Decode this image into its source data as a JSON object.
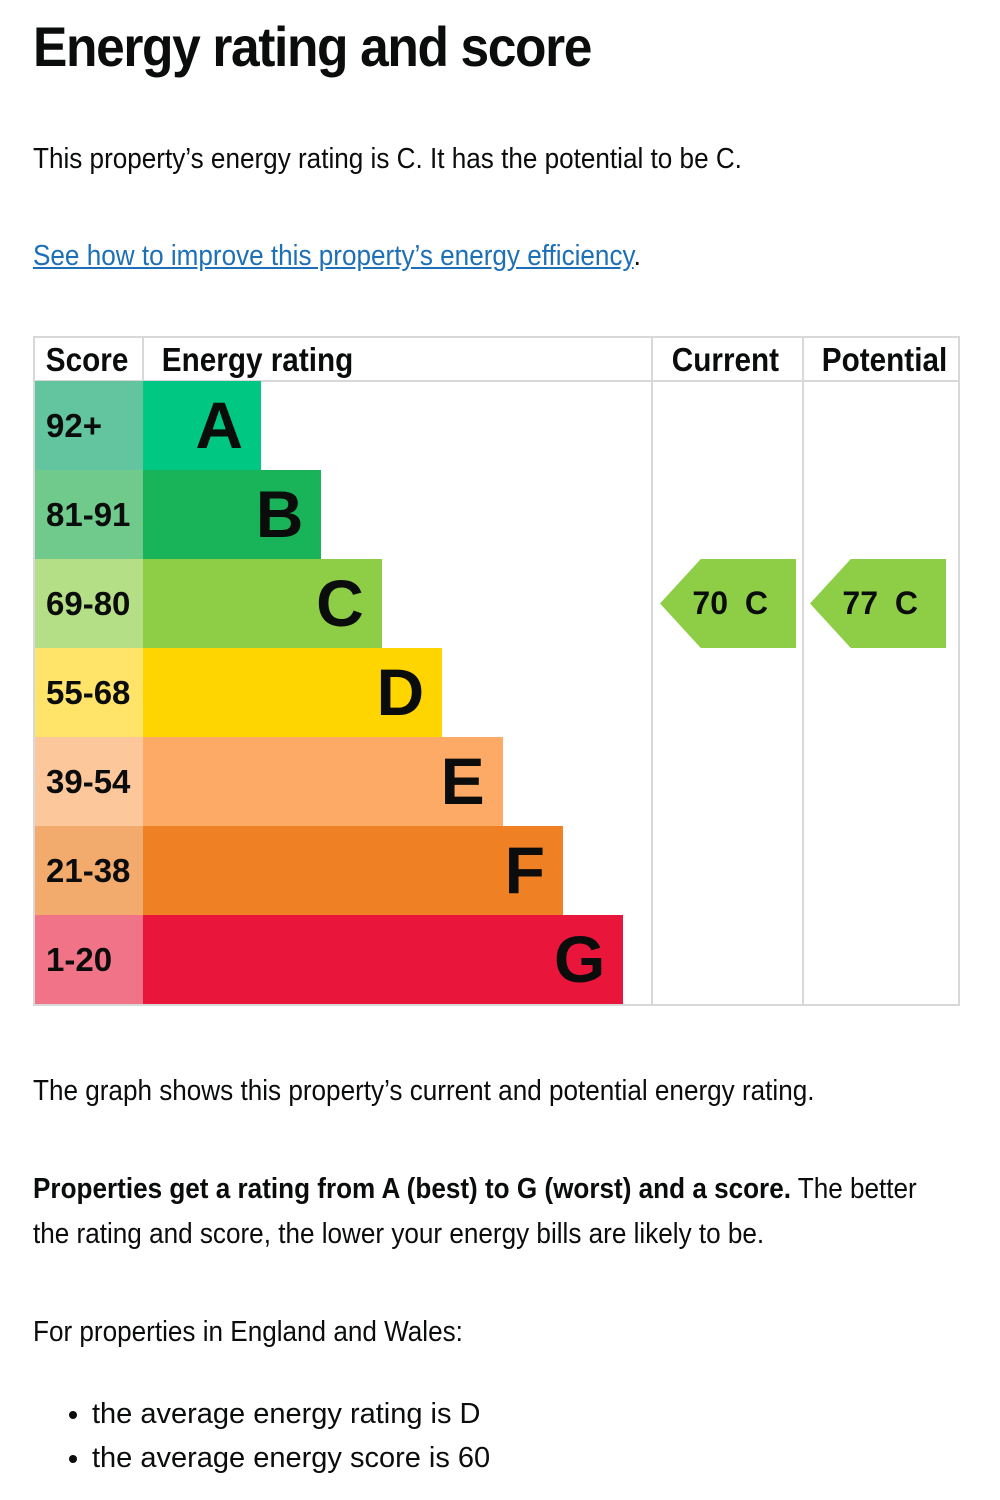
{
  "title": "Energy rating and score",
  "intro": "This property’s energy rating is C. It has the potential to be C.",
  "link": "See how to improve this property’s energy efficiency",
  "table": {
    "headers": {
      "score": "Score",
      "rating": "Energy rating",
      "current": "Current",
      "potential": "Potential"
    },
    "rows": [
      {
        "score": "92+",
        "band": "A",
        "color": "#00c781",
        "light": "#63c59f"
      },
      {
        "score": "81-91",
        "band": "B",
        "color": "#19b459",
        "light": "#6fca8b"
      },
      {
        "score": "69-80",
        "band": "C",
        "color": "#8dce46",
        "light": "#b5df86"
      },
      {
        "score": "55-68",
        "band": "D",
        "color": "#ffd500",
        "light": "#ffe469"
      },
      {
        "score": "39-54",
        "band": "E",
        "color": "#fcaa65",
        "light": "#fdc79c"
      },
      {
        "score": "21-38",
        "band": "F",
        "color": "#ef8023",
        "light": "#f3aa6d"
      },
      {
        "score": "1-20",
        "band": "G",
        "color": "#e9153b",
        "light": "#f17388"
      }
    ],
    "current": {
      "label": "70 C",
      "score": 70,
      "band": "C"
    },
    "potential": {
      "label": "77 C",
      "score": 77,
      "band": "C"
    }
  },
  "graph_note": "The graph shows this property’s current and potential energy rating.",
  "ratings_bold": "Properties get a rating from A (best) to G (worst) and a score.",
  "ratings_rest": " The better",
  "ratings_line2": "the rating and score, the lower your energy bills are likely to be.",
  "region": "For properties in England and Wales:",
  "averages": [
    "the average energy rating is D",
    "the average energy score is 60"
  ]
}
